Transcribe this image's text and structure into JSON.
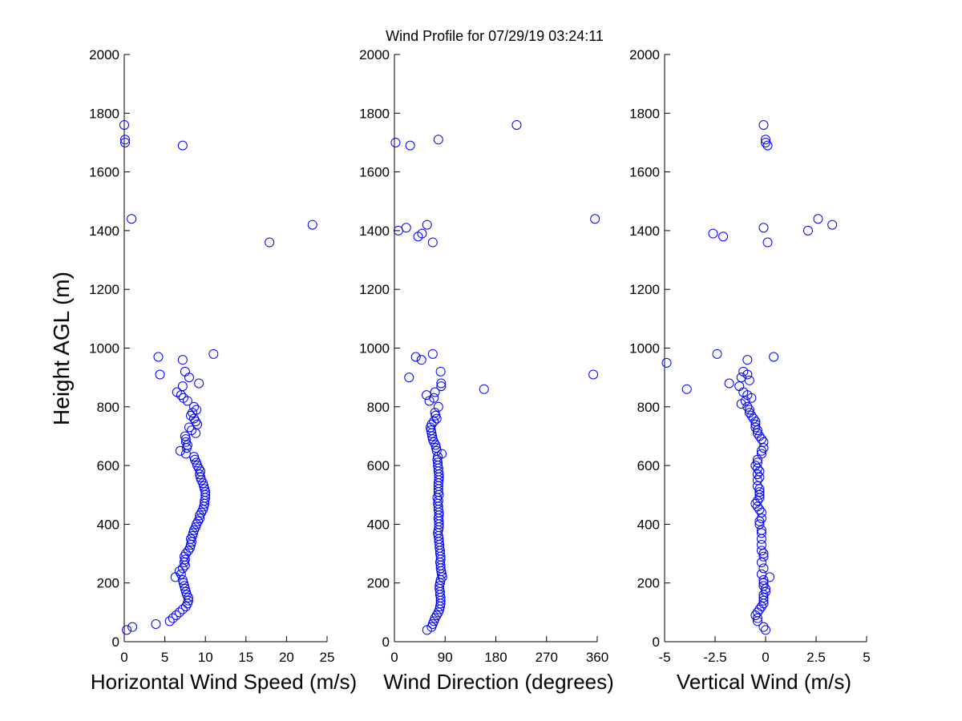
{
  "figure": {
    "title": "Wind Profile for  07/29/19 03:24:11",
    "ylabel": "Height AGL (m)",
    "marker_color": "#0000ff"
  },
  "chart_data": [
    {
      "type": "scatter",
      "name": "horizontal-wind-speed",
      "xlabel": "Horizontal Wind Speed (m/s)",
      "ylabel": "Height AGL (m)",
      "xlim": [
        0,
        25
      ],
      "ylim": [
        0,
        2000
      ],
      "xticks": [
        0,
        5,
        10,
        15,
        20,
        25
      ],
      "xtick_labels": [
        "0",
        "5",
        "10",
        "15",
        "20",
        "25"
      ],
      "yticks": [
        0,
        200,
        400,
        600,
        800,
        1000,
        1200,
        1400,
        1600,
        1800,
        2000
      ],
      "ytick_labels": [
        "0",
        "200",
        "400",
        "600",
        "800",
        "1000",
        "1200",
        "1400",
        "1600",
        "1800",
        "2000"
      ],
      "points": [
        [
          0.3,
          40
        ],
        [
          1.0,
          50
        ],
        [
          3.9,
          60
        ],
        [
          5.6,
          70
        ],
        [
          6.0,
          80
        ],
        [
          6.4,
          90
        ],
        [
          6.8,
          100
        ],
        [
          7.2,
          110
        ],
        [
          7.6,
          120
        ],
        [
          7.8,
          130
        ],
        [
          7.9,
          140
        ],
        [
          7.9,
          150
        ],
        [
          7.7,
          160
        ],
        [
          7.6,
          170
        ],
        [
          7.5,
          180
        ],
        [
          7.4,
          190
        ],
        [
          7.3,
          200
        ],
        [
          7.2,
          210
        ],
        [
          6.3,
          220
        ],
        [
          7.0,
          230
        ],
        [
          6.8,
          240
        ],
        [
          7.2,
          250
        ],
        [
          7.5,
          260
        ],
        [
          7.4,
          270
        ],
        [
          7.5,
          280
        ],
        [
          7.4,
          290
        ],
        [
          7.6,
          300
        ],
        [
          7.9,
          310
        ],
        [
          8.1,
          320
        ],
        [
          8.2,
          330
        ],
        [
          8.3,
          340
        ],
        [
          8.2,
          350
        ],
        [
          8.4,
          360
        ],
        [
          8.5,
          370
        ],
        [
          8.6,
          380
        ],
        [
          8.8,
          390
        ],
        [
          8.9,
          400
        ],
        [
          9.1,
          410
        ],
        [
          9.3,
          420
        ],
        [
          9.3,
          430
        ],
        [
          9.5,
          440
        ],
        [
          9.7,
          450
        ],
        [
          9.8,
          460
        ],
        [
          9.9,
          470
        ],
        [
          9.9,
          480
        ],
        [
          10.0,
          490
        ],
        [
          10.0,
          500
        ],
        [
          10.0,
          510
        ],
        [
          9.9,
          520
        ],
        [
          9.8,
          530
        ],
        [
          9.7,
          540
        ],
        [
          9.5,
          550
        ],
        [
          9.4,
          560
        ],
        [
          9.3,
          570
        ],
        [
          9.4,
          580
        ],
        [
          9.2,
          590
        ],
        [
          9.0,
          600
        ],
        [
          8.9,
          610
        ],
        [
          8.7,
          620
        ],
        [
          8.6,
          630
        ],
        [
          7.6,
          640
        ],
        [
          6.9,
          650
        ],
        [
          7.7,
          660
        ],
        [
          7.8,
          670
        ],
        [
          7.6,
          680
        ],
        [
          7.6,
          690
        ],
        [
          7.5,
          700
        ],
        [
          8.8,
          710
        ],
        [
          8.3,
          720
        ],
        [
          8.0,
          730
        ],
        [
          9.0,
          740
        ],
        [
          8.8,
          750
        ],
        [
          8.6,
          760
        ],
        [
          8.2,
          770
        ],
        [
          8.4,
          780
        ],
        [
          8.9,
          790
        ],
        [
          8.6,
          800
        ],
        [
          7.8,
          820
        ],
        [
          7.3,
          830
        ],
        [
          7.0,
          840
        ],
        [
          6.5,
          850
        ],
        [
          7.2,
          870
        ],
        [
          9.2,
          880
        ],
        [
          8.0,
          900
        ],
        [
          4.4,
          910
        ],
        [
          7.5,
          920
        ],
        [
          7.2,
          960
        ],
        [
          4.2,
          970
        ],
        [
          11.0,
          980
        ],
        [
          17.9,
          1360
        ],
        [
          23.2,
          1420
        ],
        [
          0.9,
          1440
        ],
        [
          7.2,
          1690
        ],
        [
          0.1,
          1700
        ],
        [
          0.1,
          1710
        ],
        [
          0.0,
          1760
        ]
      ]
    },
    {
      "type": "scatter",
      "name": "wind-direction",
      "xlabel": "Wind Direction (degrees)",
      "ylabel": "",
      "xlim": [
        0,
        360
      ],
      "ylim": [
        0,
        2000
      ],
      "xticks": [
        0,
        90,
        180,
        270,
        360
      ],
      "xtick_labels": [
        "0",
        "90",
        "180",
        "270",
        "360"
      ],
      "yticks": [
        0,
        200,
        400,
        600,
        800,
        1000,
        1200,
        1400,
        1600,
        1800,
        2000
      ],
      "ytick_labels": [
        "0",
        "200",
        "400",
        "600",
        "800",
        "1000",
        "1200",
        "1400",
        "1600",
        "1800",
        "2000"
      ],
      "points": [
        [
          58,
          40
        ],
        [
          66,
          50
        ],
        [
          68,
          60
        ],
        [
          70,
          70
        ],
        [
          72,
          80
        ],
        [
          75,
          90
        ],
        [
          78,
          100
        ],
        [
          80,
          110
        ],
        [
          81,
          120
        ],
        [
          82,
          130
        ],
        [
          82,
          140
        ],
        [
          82,
          150
        ],
        [
          81,
          160
        ],
        [
          81,
          170
        ],
        [
          80,
          180
        ],
        [
          80,
          190
        ],
        [
          81,
          200
        ],
        [
          82,
          210
        ],
        [
          85,
          220
        ],
        [
          84,
          230
        ],
        [
          83,
          240
        ],
        [
          82,
          250
        ],
        [
          82,
          260
        ],
        [
          81,
          270
        ],
        [
          82,
          280
        ],
        [
          82,
          290
        ],
        [
          81,
          300
        ],
        [
          81,
          310
        ],
        [
          80,
          320
        ],
        [
          80,
          330
        ],
        [
          79,
          340
        ],
        [
          79,
          350
        ],
        [
          78,
          360
        ],
        [
          77,
          370
        ],
        [
          78,
          380
        ],
        [
          79,
          390
        ],
        [
          79,
          400
        ],
        [
          79,
          410
        ],
        [
          78,
          420
        ],
        [
          79,
          430
        ],
        [
          79,
          440
        ],
        [
          78,
          450
        ],
        [
          78,
          460
        ],
        [
          77,
          470
        ],
        [
          78,
          480
        ],
        [
          76,
          490
        ],
        [
          79,
          500
        ],
        [
          78,
          510
        ],
        [
          78,
          520
        ],
        [
          78,
          530
        ],
        [
          78,
          540
        ],
        [
          79,
          550
        ],
        [
          79,
          560
        ],
        [
          79,
          570
        ],
        [
          78,
          580
        ],
        [
          78,
          590
        ],
        [
          77,
          600
        ],
        [
          77,
          610
        ],
        [
          76,
          620
        ],
        [
          77,
          630
        ],
        [
          84,
          640
        ],
        [
          75,
          650
        ],
        [
          74,
          660
        ],
        [
          73,
          670
        ],
        [
          70,
          680
        ],
        [
          68,
          690
        ],
        [
          67,
          700
        ],
        [
          66,
          710
        ],
        [
          65,
          720
        ],
        [
          64,
          730
        ],
        [
          66,
          740
        ],
        [
          70,
          750
        ],
        [
          75,
          760
        ],
        [
          73,
          770
        ],
        [
          72,
          780
        ],
        [
          78,
          800
        ],
        [
          62,
          820
        ],
        [
          70,
          830
        ],
        [
          57,
          840
        ],
        [
          72,
          850
        ],
        [
          159,
          860
        ],
        [
          83,
          870
        ],
        [
          83,
          880
        ],
        [
          26,
          900
        ],
        [
          353,
          910
        ],
        [
          82,
          920
        ],
        [
          48,
          960
        ],
        [
          38,
          970
        ],
        [
          68,
          980
        ],
        [
          68,
          1360
        ],
        [
          42,
          1380
        ],
        [
          49,
          1390
        ],
        [
          7,
          1400
        ],
        [
          21,
          1410
        ],
        [
          58,
          1420
        ],
        [
          356,
          1440
        ],
        [
          28,
          1690
        ],
        [
          2,
          1700
        ],
        [
          78,
          1710
        ],
        [
          217,
          1760
        ]
      ]
    },
    {
      "type": "scatter",
      "name": "vertical-wind",
      "xlabel": "Vertical Wind (m/s)",
      "ylabel": "",
      "xlim": [
        -5,
        5
      ],
      "ylim": [
        0,
        2000
      ],
      "xticks": [
        -5,
        -2.5,
        0,
        2.5,
        5
      ],
      "xtick_labels": [
        "-5",
        "-2.5",
        "0",
        "2.5",
        "5"
      ],
      "yticks": [
        0,
        200,
        400,
        600,
        800,
        1000,
        1200,
        1400,
        1600,
        1800,
        2000
      ],
      "ytick_labels": [
        "0",
        "200",
        "400",
        "600",
        "800",
        "1000",
        "1200",
        "1400",
        "1600",
        "1800",
        "2000"
      ],
      "points": [
        [
          0.0,
          40
        ],
        [
          -0.1,
          50
        ],
        [
          -0.4,
          70
        ],
        [
          -0.4,
          80
        ],
        [
          -0.5,
          90
        ],
        [
          -0.4,
          100
        ],
        [
          -0.3,
          110
        ],
        [
          -0.2,
          120
        ],
        [
          -0.1,
          130
        ],
        [
          -0.1,
          140
        ],
        [
          -0.1,
          150
        ],
        [
          -0.1,
          160
        ],
        [
          0.0,
          170
        ],
        [
          0.0,
          180
        ],
        [
          -0.1,
          190
        ],
        [
          -0.1,
          200
        ],
        [
          -0.1,
          210
        ],
        [
          0.2,
          220
        ],
        [
          -0.2,
          230
        ],
        [
          -0.1,
          250
        ],
        [
          -0.2,
          270
        ],
        [
          -0.1,
          290
        ],
        [
          -0.1,
          300
        ],
        [
          -0.2,
          310
        ],
        [
          -0.2,
          330
        ],
        [
          -0.2,
          350
        ],
        [
          -0.2,
          370
        ],
        [
          -0.2,
          380
        ],
        [
          -0.3,
          400
        ],
        [
          -0.3,
          410
        ],
        [
          -0.2,
          420
        ],
        [
          -0.2,
          440
        ],
        [
          -0.3,
          450
        ],
        [
          -0.4,
          460
        ],
        [
          -0.5,
          470
        ],
        [
          -0.4,
          480
        ],
        [
          -0.3,
          490
        ],
        [
          -0.3,
          500
        ],
        [
          -0.3,
          510
        ],
        [
          -0.3,
          520
        ],
        [
          -0.4,
          530
        ],
        [
          -0.4,
          550
        ],
        [
          -0.3,
          560
        ],
        [
          -0.4,
          570
        ],
        [
          -0.3,
          580
        ],
        [
          -0.4,
          590
        ],
        [
          -0.5,
          600
        ],
        [
          -0.4,
          610
        ],
        [
          -0.4,
          620
        ],
        [
          -0.2,
          640
        ],
        [
          -0.2,
          650
        ],
        [
          -0.1,
          660
        ],
        [
          -0.1,
          680
        ],
        [
          -0.2,
          690
        ],
        [
          -0.3,
          700
        ],
        [
          -0.4,
          710
        ],
        [
          -0.4,
          720
        ],
        [
          -0.5,
          730
        ],
        [
          -0.5,
          740
        ],
        [
          -0.5,
          750
        ],
        [
          -0.6,
          760
        ],
        [
          -0.7,
          770
        ],
        [
          -0.8,
          780
        ],
        [
          -0.8,
          790
        ],
        [
          -0.9,
          800
        ],
        [
          -1.2,
          810
        ],
        [
          -1.0,
          820
        ],
        [
          -0.7,
          830
        ],
        [
          -0.9,
          840
        ],
        [
          -1.1,
          850
        ],
        [
          -3.9,
          860
        ],
        [
          -1.3,
          870
        ],
        [
          -1.8,
          880
        ],
        [
          -0.8,
          890
        ],
        [
          -1.2,
          900
        ],
        [
          -0.9,
          910
        ],
        [
          -1.1,
          920
        ],
        [
          -4.9,
          950
        ],
        [
          -0.9,
          960
        ],
        [
          0.4,
          970
        ],
        [
          -2.4,
          980
        ],
        [
          0.1,
          1360
        ],
        [
          -2.1,
          1380
        ],
        [
          -2.6,
          1390
        ],
        [
          2.1,
          1400
        ],
        [
          -0.1,
          1410
        ],
        [
          3.3,
          1420
        ],
        [
          2.6,
          1440
        ],
        [
          0.1,
          1690
        ],
        [
          0.0,
          1700
        ],
        [
          0.0,
          1710
        ],
        [
          -0.1,
          1760
        ]
      ]
    }
  ]
}
